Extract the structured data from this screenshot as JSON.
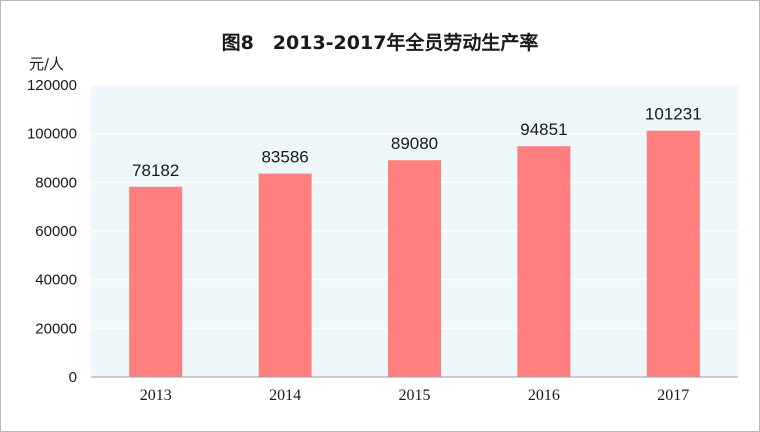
{
  "chart_data": {
    "type": "bar",
    "title": "图8　2013-2017年全员劳动生产率",
    "ylabel": "元/人",
    "xlabel": "",
    "categories": [
      "2013",
      "2014",
      "2015",
      "2016",
      "2017"
    ],
    "values": [
      78182,
      83586,
      89080,
      94851,
      101231
    ],
    "data_labels": [
      "78182",
      "83586",
      "89080",
      "94851",
      "101231"
    ],
    "ylim": [
      0,
      120000
    ],
    "yticks": [
      0,
      20000,
      40000,
      60000,
      80000,
      100000,
      120000
    ],
    "ytick_labels": [
      "0",
      "20000",
      "40000",
      "60000",
      "80000",
      "100000",
      "120000"
    ],
    "grid": true,
    "legend": "none",
    "colors": {
      "bar": "#ff7f7f",
      "plot_background": "#eef7fa",
      "grid": "#ffffff",
      "axis": "#9c9c9c"
    }
  }
}
